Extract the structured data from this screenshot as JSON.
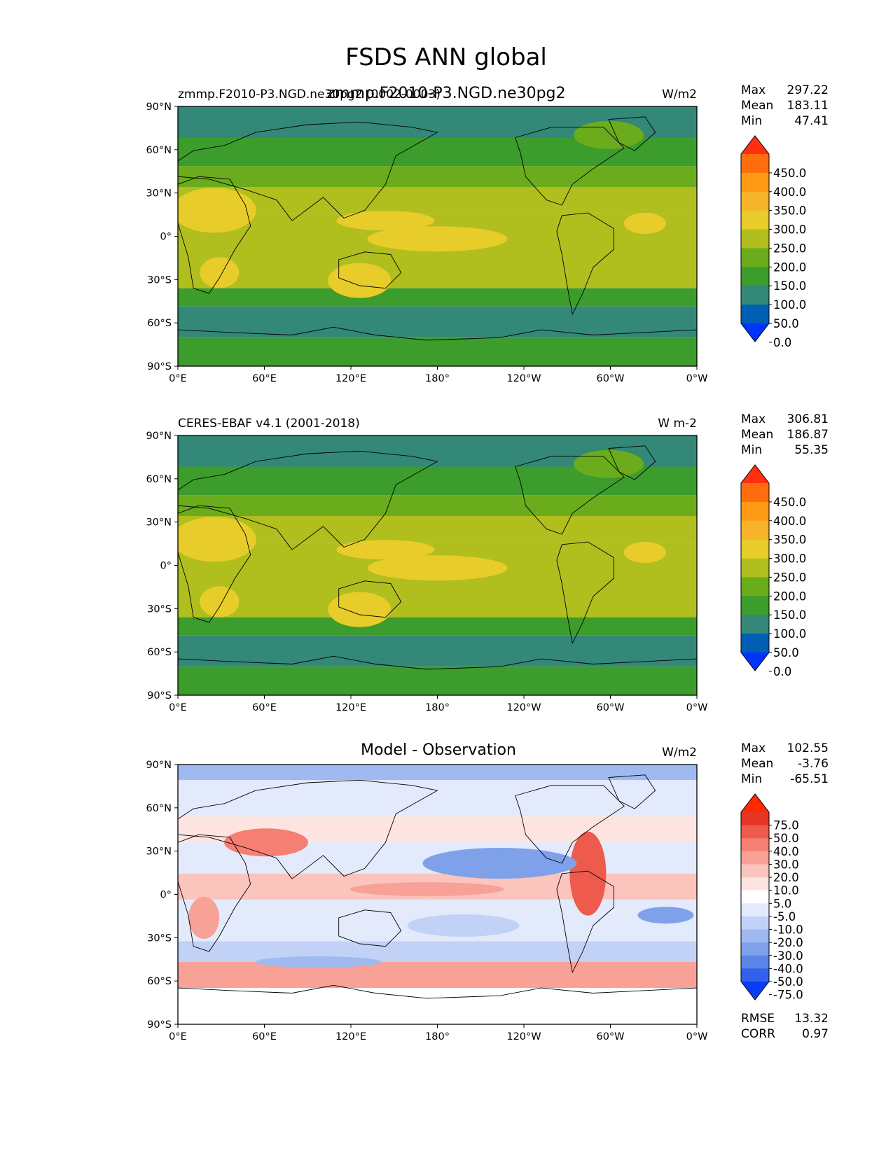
{
  "suptitle": "FSDS ANN global",
  "lat_ticks": [
    "90°N",
    "60°N",
    "30°N",
    "0°",
    "30°S",
    "60°S",
    "90°S"
  ],
  "lon_ticks": [
    "0°E",
    "60°E",
    "120°E",
    "180°",
    "120°W",
    "60°W",
    "0°W"
  ],
  "colors": {
    "field": [
      "#0033ff",
      "#005eb4",
      "#338877",
      "#3c9c2c",
      "#6aac1c",
      "#b0bf1e",
      "#e8cc2a",
      "#f7b42a",
      "#ff9a14",
      "#ff6d0f",
      "#ff2f10"
    ],
    "diff": [
      "#0a3cf7",
      "#3361ec",
      "#5a85e6",
      "#7ea1ea",
      "#9fb9f1",
      "#c2d2f7",
      "#e3eafb",
      "#ffffff",
      "#fde4e0",
      "#fbc4bc",
      "#f8a197",
      "#f47f72",
      "#ee5a4c",
      "#e73424",
      "#ff2a00"
    ]
  },
  "chart_data": [
    {
      "type": "heatmap",
      "panel": "test",
      "title": "zmmp.F2010-P3.NGD.ne30pg2",
      "left_label": "zmmp.F2010-P3.NGD.ne30pg2 (0002-0003)",
      "units": "W/m2",
      "stats": {
        "max_label": "Max",
        "max": "297.22",
        "mean_label": "Mean",
        "mean": "183.11",
        "min_label": "Min",
        "min": "47.41"
      },
      "colorbar_levels": [
        "450.0",
        "400.0",
        "350.0",
        "300.0",
        "250.0",
        "200.0",
        "150.0",
        "100.0",
        "50.0",
        "0.0"
      ]
    },
    {
      "type": "heatmap",
      "panel": "reference",
      "title": "",
      "left_label": "CERES-EBAF v4.1 (2001-2018)",
      "units": "W m-2",
      "stats": {
        "max_label": "Max",
        "max": "306.81",
        "mean_label": "Mean",
        "mean": "186.87",
        "min_label": "Min",
        "min": "55.35"
      },
      "colorbar_levels": [
        "450.0",
        "400.0",
        "350.0",
        "300.0",
        "250.0",
        "200.0",
        "150.0",
        "100.0",
        "50.0",
        "0.0"
      ]
    },
    {
      "type": "heatmap",
      "panel": "difference",
      "title": "Model - Observation",
      "left_label": "",
      "units": "W/m2",
      "stats": {
        "max_label": "Max",
        "max": "102.55",
        "mean_label": "Mean",
        "mean": "-3.76",
        "min_label": "Min",
        "min": "-65.51"
      },
      "colorbar_levels": [
        "75.0",
        "50.0",
        "40.0",
        "30.0",
        "20.0",
        "10.0",
        "5.0",
        "-5.0",
        "-10.0",
        "-20.0",
        "-30.0",
        "-40.0",
        "-50.0",
        "-75.0"
      ],
      "metrics": {
        "rmse_label": "RMSE",
        "rmse": "13.32",
        "corr_label": "CORR",
        "corr": "0.97"
      }
    }
  ]
}
